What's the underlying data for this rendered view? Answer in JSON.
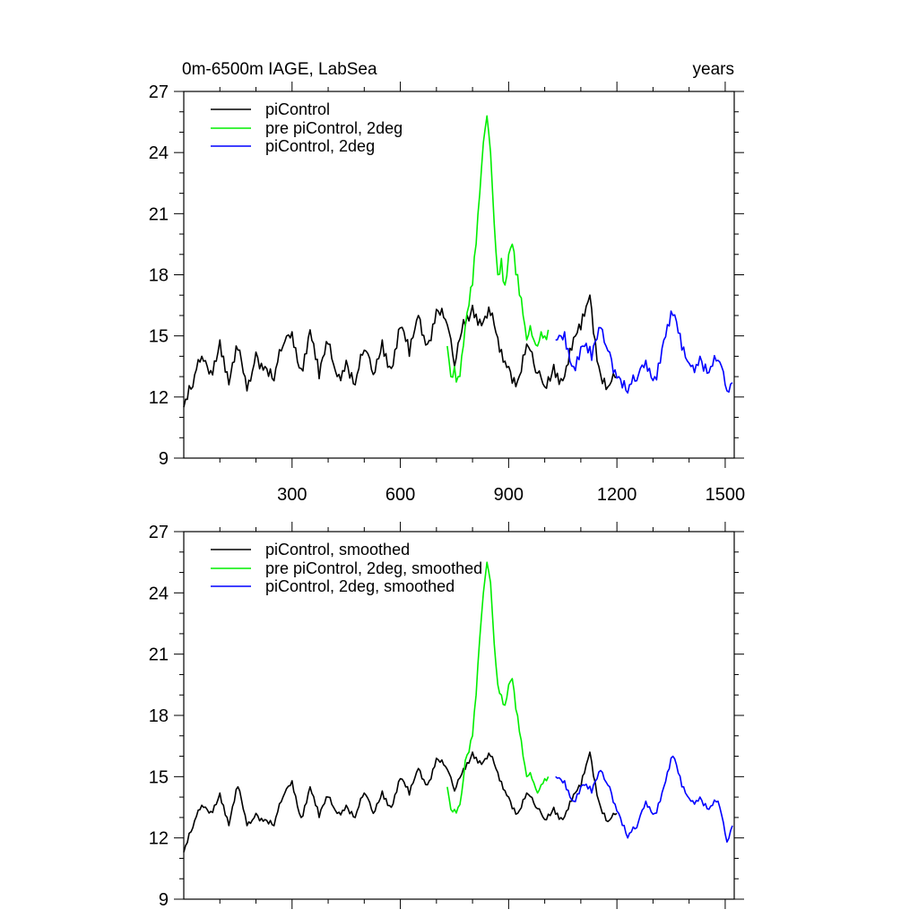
{
  "chart_data": [
    {
      "type": "line",
      "title_left": "0m-6500m IAGE, LabSea",
      "title_right": "years",
      "xlim": [
        0,
        1525
      ],
      "ylim": [
        9,
        27
      ],
      "x_ticks": [
        300,
        600,
        900,
        1200,
        1500
      ],
      "y_ticks": [
        9,
        12,
        15,
        18,
        21,
        24,
        27
      ],
      "xlabel": "",
      "ylabel": "",
      "legend_position": "top-left",
      "series": [
        {
          "name": "piControl",
          "color": "#000000",
          "x": [
            0,
            25,
            50,
            75,
            100,
            125,
            150,
            175,
            200,
            225,
            250,
            275,
            300,
            325,
            350,
            375,
            400,
            425,
            450,
            475,
            500,
            525,
            550,
            575,
            600,
            625,
            650,
            675,
            700,
            725,
            750,
            775,
            800,
            825,
            850,
            875,
            900,
            925,
            950,
            975,
            1000,
            1025,
            1050,
            1075,
            1100,
            1125,
            1150,
            1175,
            1200
          ],
          "y": [
            11.5,
            12.5,
            14.0,
            13.3,
            14.8,
            12.6,
            14.3,
            12.3,
            14.2,
            13.5,
            12.8,
            14.5,
            15.2,
            13.4,
            15.3,
            12.9,
            14.6,
            13.0,
            13.8,
            12.6,
            14.3,
            13.1,
            14.8,
            13.4,
            15.4,
            14.0,
            16.0,
            14.6,
            16.3,
            15.8,
            13.5,
            15.8,
            16.5,
            15.5,
            16.0,
            14.2,
            13.5,
            12.8,
            14.6,
            13.2,
            12.5,
            13.6,
            12.8,
            14.3,
            15.3,
            17.0,
            13.5,
            12.5,
            13.0
          ]
        },
        {
          "name": "pre piControl, 2deg",
          "color": "#00ee00",
          "x": [
            730,
            740,
            750,
            760,
            770,
            780,
            790,
            800,
            810,
            820,
            830,
            840,
            850,
            860,
            870,
            880,
            890,
            900,
            910,
            920,
            930,
            940,
            950,
            960,
            970,
            980,
            990,
            1000,
            1010
          ],
          "y": [
            14.5,
            13.0,
            13.5,
            13.0,
            14.0,
            15.5,
            16.5,
            17.5,
            19.5,
            22.0,
            24.5,
            25.8,
            24.0,
            20.5,
            18.0,
            18.8,
            17.5,
            19.0,
            19.5,
            18.0,
            17.0,
            16.0,
            14.8,
            15.5,
            14.8,
            14.5,
            15.2,
            15.0,
            15.3
          ]
        },
        {
          "name": "piControl, 2deg",
          "color": "#0000ff",
          "x": [
            1030,
            1055,
            1080,
            1105,
            1130,
            1155,
            1180,
            1205,
            1230,
            1255,
            1280,
            1305,
            1330,
            1355,
            1380,
            1405,
            1430,
            1455,
            1480,
            1505,
            1520
          ],
          "y": [
            14.8,
            15.2,
            13.5,
            14.5,
            13.8,
            15.4,
            14.2,
            13.0,
            12.2,
            12.8,
            13.8,
            13.0,
            14.8,
            16.0,
            14.3,
            13.5,
            14.0,
            13.2,
            13.8,
            12.3,
            12.7
          ]
        }
      ]
    },
    {
      "type": "line",
      "xlim": [
        0,
        1525
      ],
      "ylim": [
        9,
        27
      ],
      "x_ticks": [
        300,
        600,
        900,
        1200,
        1500
      ],
      "y_ticks": [
        9,
        12,
        15,
        18,
        21,
        24,
        27
      ],
      "xlabel": "",
      "ylabel": "",
      "legend_position": "top-left",
      "series": [
        {
          "name": "piControl, smoothed",
          "color": "#000000",
          "x": [
            0,
            25,
            50,
            75,
            100,
            125,
            150,
            175,
            200,
            225,
            250,
            275,
            300,
            325,
            350,
            375,
            400,
            425,
            450,
            475,
            500,
            525,
            550,
            575,
            600,
            625,
            650,
            675,
            700,
            725,
            750,
            775,
            800,
            825,
            850,
            875,
            900,
            925,
            950,
            975,
            1000,
            1025,
            1050,
            1075,
            1100,
            1125,
            1150,
            1175,
            1200
          ],
          "y": [
            11.3,
            12.5,
            13.6,
            13.3,
            14.2,
            12.6,
            14.5,
            12.6,
            13.2,
            12.9,
            12.6,
            14.0,
            14.8,
            13.0,
            14.5,
            13.0,
            14.0,
            13.2,
            13.6,
            13.0,
            14.2,
            13.2,
            14.3,
            13.5,
            14.9,
            14.1,
            15.4,
            14.6,
            15.9,
            15.5,
            14.3,
            15.4,
            16.2,
            15.6,
            16.0,
            14.8,
            14.0,
            13.2,
            14.2,
            13.5,
            12.9,
            13.5,
            12.9,
            13.8,
            14.5,
            16.2,
            13.8,
            12.8,
            13.2
          ]
        },
        {
          "name": "pre piControl, 2deg, smoothed",
          "color": "#00ee00",
          "x": [
            730,
            740,
            750,
            760,
            770,
            780,
            790,
            800,
            810,
            820,
            830,
            840,
            850,
            860,
            870,
            880,
            890,
            900,
            910,
            920,
            930,
            940,
            950,
            960,
            970,
            980,
            990,
            1000,
            1010
          ],
          "y": [
            14.5,
            13.4,
            13.4,
            13.5,
            14.2,
            15.8,
            16.2,
            17.0,
            19.0,
            21.8,
            24.0,
            25.5,
            24.5,
            21.5,
            19.5,
            19.0,
            18.5,
            19.5,
            19.8,
            18.3,
            17.2,
            16.0,
            15.0,
            15.2,
            14.7,
            14.2,
            14.6,
            14.9,
            15.0
          ]
        },
        {
          "name": "piControl, 2deg, smoothed",
          "color": "#0000ff",
          "x": [
            1030,
            1055,
            1080,
            1105,
            1130,
            1155,
            1180,
            1205,
            1230,
            1255,
            1280,
            1305,
            1330,
            1355,
            1380,
            1405,
            1430,
            1455,
            1480,
            1505,
            1520
          ],
          "y": [
            15.0,
            14.8,
            13.8,
            14.6,
            14.2,
            15.3,
            14.5,
            13.2,
            12.0,
            12.5,
            13.8,
            13.2,
            14.5,
            16.0,
            14.5,
            13.8,
            14.0,
            13.4,
            13.8,
            11.8,
            12.6
          ]
        }
      ]
    }
  ]
}
